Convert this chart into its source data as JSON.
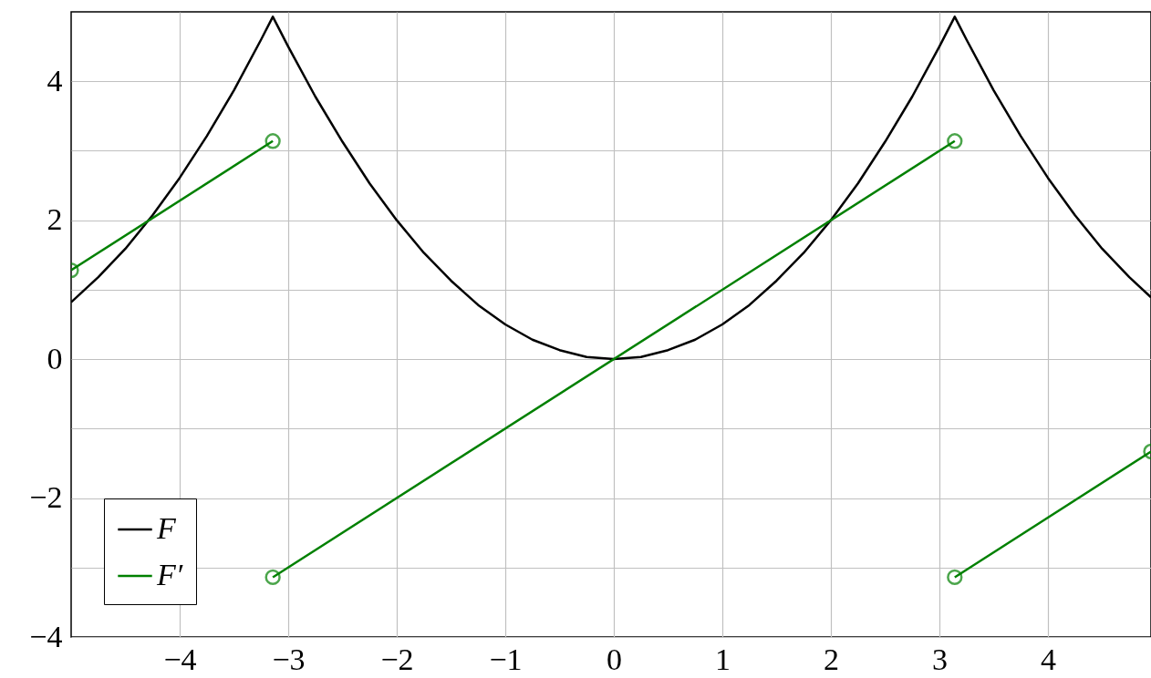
{
  "chart_data": {
    "type": "line",
    "xlim": [
      -5,
      4.95
    ],
    "ylim": [
      -4,
      5
    ],
    "xticks": [
      -4,
      -3,
      -2,
      -1,
      0,
      1,
      2,
      3,
      4
    ],
    "yticks": [
      -4,
      {
        "value": -3,
        "label": null
      },
      -2,
      {
        "value": -1,
        "label": null
      },
      0,
      {
        "value": 1,
        "label": null
      },
      2,
      {
        "value": 3,
        "label": null
      },
      4
    ],
    "grid": true,
    "legend": "bottom left",
    "series": [
      {
        "name": "F",
        "color": "#000000",
        "marker": "none",
        "x": [
          -5,
          -4.75,
          -4.5,
          -4.25,
          -4,
          -3.75,
          -3.5,
          -3.25,
          -3.1416,
          -3,
          -2.75,
          -2.5,
          -2.25,
          -2,
          -1.75,
          -1.5,
          -1.25,
          -1,
          -0.75,
          -0.5,
          -0.25,
          0,
          0.25,
          0.5,
          0.75,
          1,
          1.25,
          1.5,
          1.75,
          2,
          2.25,
          2.5,
          2.75,
          3,
          3.1416,
          3.25,
          3.5,
          3.75,
          4,
          4.25,
          4.5,
          4.75,
          4.95
        ],
        "values": [
          0.82,
          1.18,
          1.59,
          2.07,
          2.61,
          3.21,
          3.87,
          4.6,
          4.93,
          4.5,
          3.78,
          3.13,
          2.53,
          2,
          1.53,
          1.13,
          0.78,
          0.5,
          0.28,
          0.13,
          0.03,
          0,
          0.03,
          0.13,
          0.28,
          0.5,
          0.78,
          1.13,
          1.53,
          2,
          2.53,
          3.13,
          3.78,
          4.5,
          4.93,
          4.6,
          3.87,
          3.21,
          2.61,
          2.07,
          1.59,
          1.18,
          0.89
        ]
      },
      {
        "name": "F′",
        "color": "#008000",
        "marker": "circle",
        "x": [
          -5,
          -3.1416,
          null,
          -3.1416,
          3.1416,
          null,
          3.1416,
          4.95
        ],
        "values": [
          1.28,
          3.14,
          null,
          -3.14,
          3.14,
          null,
          -3.14,
          -1.33
        ]
      }
    ]
  }
}
